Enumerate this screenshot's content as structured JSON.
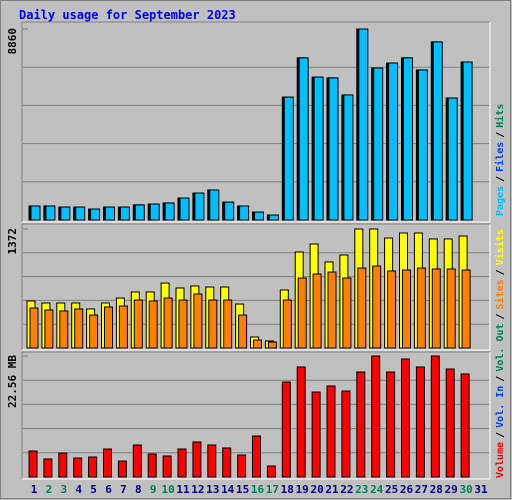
{
  "chart_data": {
    "type": "bar",
    "title": "Daily usage for September 2023",
    "categories": [
      "1",
      "2",
      "3",
      "4",
      "5",
      "6",
      "7",
      "8",
      "9",
      "10",
      "11",
      "12",
      "13",
      "14",
      "15",
      "16",
      "17",
      "18",
      "19",
      "20",
      "21",
      "22",
      "23",
      "24",
      "25",
      "26",
      "27",
      "28",
      "29",
      "30",
      "31"
    ],
    "category_colors": [
      "#000080",
      "#00805c",
      "#00805c",
      "#000080",
      "#000080",
      "#000080",
      "#000080",
      "#000080",
      "#00805c",
      "#00805c",
      "#000080",
      "#000080",
      "#000080",
      "#000080",
      "#000080",
      "#00805c",
      "#00805c",
      "#000080",
      "#000080",
      "#000080",
      "#000080",
      "#000080",
      "#00805c",
      "#00805c",
      "#000080",
      "#000080",
      "#000080",
      "#000080",
      "#000080",
      "#00805c",
      "#000080"
    ],
    "legend_separator": "/",
    "grid": true,
    "panels": [
      {
        "ylim": [
          0,
          8860
        ],
        "yticks": [
          8860
        ],
        "series": [
          {
            "name": "Hits",
            "color": "#00805c",
            "values": [
              650,
              650,
              600,
              600,
              510,
              600,
              600,
              700,
              740,
              790,
              1020,
              1250,
              1390,
              830,
              650,
              370,
              230,
              5700,
              7520,
              6630,
              6590,
              5800,
              8860,
              7050,
              7280,
              7520,
              6960,
              8260,
              5660,
              7330,
              null
            ]
          },
          {
            "name": "Files",
            "color": "#0040ff",
            "values": [
              650,
              650,
              600,
              600,
              510,
              600,
              600,
              700,
              740,
              790,
              1020,
              1250,
              1390,
              830,
              650,
              370,
              230,
              5700,
              7520,
              6630,
              6590,
              5800,
              8860,
              7050,
              7280,
              7520,
              6960,
              8260,
              5660,
              7330,
              null
            ]
          },
          {
            "name": "Pages",
            "color": "#00c0ff",
            "values": [
              650,
              650,
              600,
              600,
              510,
              600,
              600,
              700,
              740,
              790,
              1020,
              1250,
              1390,
              830,
              650,
              370,
              230,
              5700,
              7520,
              6630,
              6590,
              5800,
              8860,
              7050,
              7280,
              7520,
              6960,
              8260,
              5660,
              7330,
              null
            ]
          }
        ]
      },
      {
        "ylim": [
          0,
          1372
        ],
        "yticks": [
          1372
        ],
        "series": [
          {
            "name": "Visits",
            "color": "#ffff00",
            "values": [
              542,
              519,
              519,
              519,
              450,
              519,
              576,
              646,
              646,
              749,
              692,
              715,
              703,
              703,
              507,
              127,
              81,
              669,
              1107,
              1199,
              992,
              1072,
              1372,
              1372,
              1268,
              1326,
              1326,
              1257,
              1257,
              1291,
              null
            ]
          },
          {
            "name": "Sites",
            "color": "#ff8000",
            "values": [
              461,
              438,
              427,
              450,
              380,
              473,
              484,
              553,
              542,
              576,
              553,
              623,
              553,
              553,
              380,
              92,
              69,
              553,
              807,
              853,
              876,
              807,
              922,
              945,
              888,
              899,
              922,
              911,
              911,
              899,
              null
            ]
          }
        ]
      },
      {
        "ylim": [
          0,
          22.56
        ],
        "yticks": [
          {
            "value": 22.56,
            "label": "22.56 MB"
          }
        ],
        "series": [
          {
            "name": "Volume",
            "color": "#ff0000",
            "values": [
              4.85,
              3.36,
              4.47,
              3.54,
              3.73,
              5.22,
              2.98,
              5.97,
              4.29,
              3.92,
              5.22,
              6.53,
              5.97,
              5.41,
              4.1,
              7.64,
              2.05,
              17.71,
              20.51,
              15.85,
              16.97,
              16.03,
              19.58,
              22.56,
              19.58,
              22.0,
              20.51,
              22.56,
              20.14,
              19.21,
              null
            ]
          },
          {
            "name": "Vol. In",
            "color": "#0040ff",
            "values": [
              null,
              null,
              null,
              null,
              null,
              null,
              null,
              null,
              null,
              null,
              null,
              null,
              null,
              null,
              null,
              null,
              null,
              null,
              null,
              null,
              null,
              null,
              null,
              null,
              null,
              null,
              null,
              null,
              null,
              null,
              null
            ]
          },
          {
            "name": "Vol. Out",
            "color": "#00805c",
            "values": [
              null,
              null,
              null,
              null,
              null,
              null,
              null,
              null,
              null,
              null,
              null,
              null,
              null,
              null,
              null,
              null,
              null,
              null,
              null,
              null,
              null,
              null,
              null,
              null,
              null,
              null,
              null,
              null,
              null,
              null,
              null
            ]
          }
        ]
      }
    ]
  }
}
